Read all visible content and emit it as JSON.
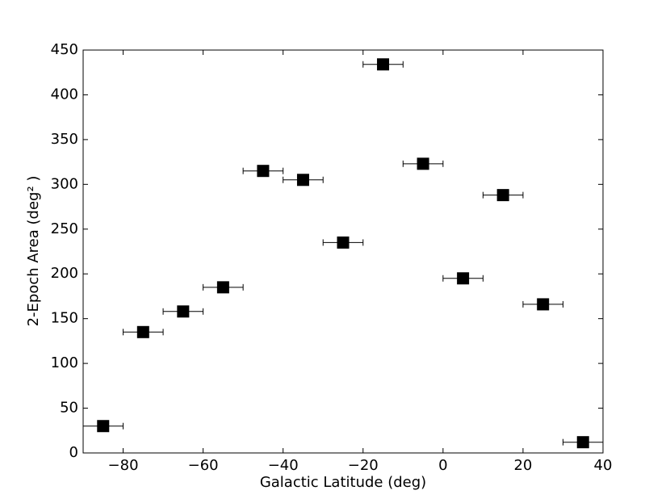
{
  "chart_data": {
    "type": "scatter",
    "xlabel": "Galactic Latitude (deg)",
    "ylabel": "2-Epoch Area (deg² )",
    "x": [
      -85,
      -75,
      -65,
      -55,
      -45,
      -35,
      -25,
      -15,
      -5,
      5,
      15,
      25,
      35
    ],
    "values": [
      30,
      135,
      158,
      185,
      315,
      305,
      235,
      434,
      323,
      195,
      288,
      166,
      12
    ],
    "xerr": [
      5,
      5,
      5,
      5,
      5,
      5,
      5,
      5,
      5,
      5,
      5,
      5,
      5
    ],
    "color": "#000000",
    "xlim": [
      -90,
      40
    ],
    "xticks": [
      {
        "value": -80,
        "label": "−80"
      },
      {
        "value": -60,
        "label": "−60"
      },
      {
        "value": -40,
        "label": "−40"
      },
      {
        "value": -20,
        "label": "−20"
      },
      0,
      20,
      40
    ],
    "ylim": [
      0,
      450
    ],
    "yticks": [
      0,
      50,
      100,
      150,
      200,
      250,
      300,
      350,
      400,
      450
    ],
    "grid": false
  }
}
